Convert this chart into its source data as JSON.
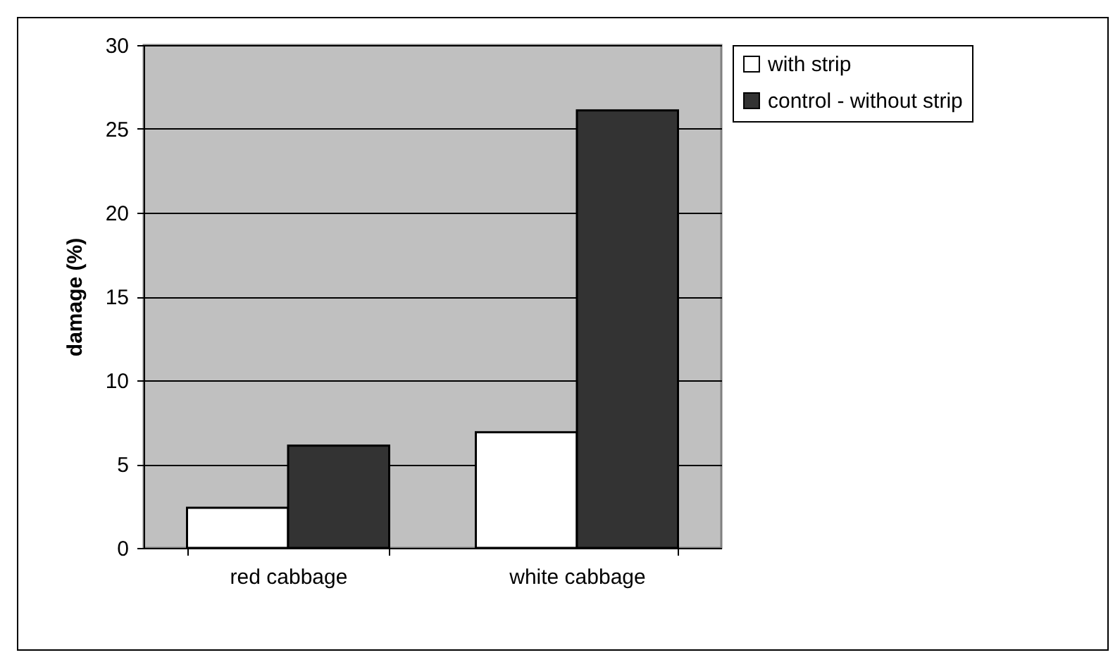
{
  "chart_data": {
    "type": "bar",
    "ylabel": "damage (%)",
    "categories": [
      "red cabbage",
      "white cabbage"
    ],
    "series": [
      {
        "name": "with strip",
        "color": "#ffffff",
        "values": [
          2.4,
          6.9
        ]
      },
      {
        "name": "control - without strip",
        "color": "#333333",
        "values": [
          6.1,
          26.1
        ]
      }
    ],
    "ylim": [
      0,
      30
    ],
    "yticks": [
      0,
      5,
      10,
      15,
      20,
      25,
      30
    ],
    "grid": "y",
    "legend": "right"
  }
}
